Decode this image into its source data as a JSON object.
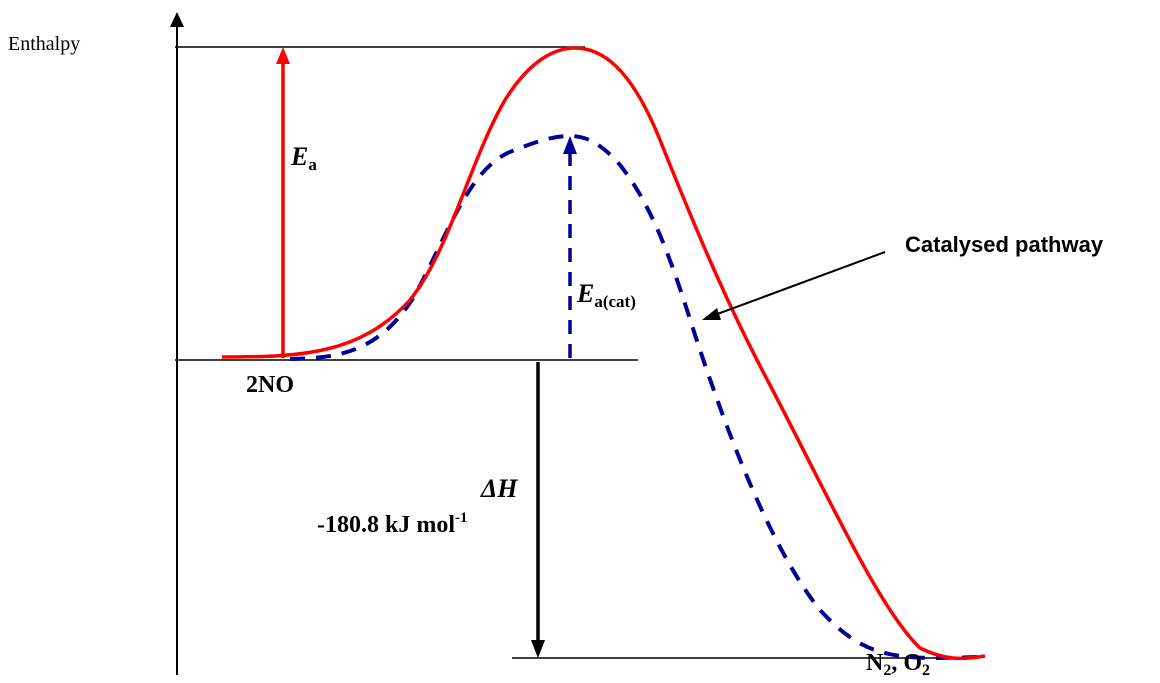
{
  "axis": {
    "y_label": "Enthalpy"
  },
  "labels": {
    "reactants": "2NO",
    "ea_main": "E",
    "ea_sub": "a",
    "ea_cat_main": "E",
    "ea_cat_sub": "a(cat)",
    "catalysed": "Catalysed pathway",
    "delta_h_symbol": "ΔH",
    "delta_h_value": "-180.8 kJ mol",
    "delta_h_exp": "-1",
    "products_n": "N",
    "products_n_sub": "2",
    "products_sep": ", O",
    "products_o_sub": "2"
  },
  "colors": {
    "uncatalysed": "#ff0000",
    "catalysed": "#000099",
    "axis": "#000000"
  }
}
